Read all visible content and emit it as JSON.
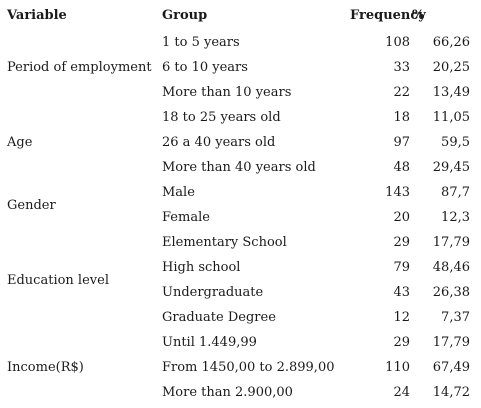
{
  "table": {
    "headers": {
      "variable": "Variable",
      "group": "Group",
      "frequency": "Frequency",
      "percent": "%"
    },
    "sections": [
      {
        "variable": "Period of employment",
        "rows": [
          {
            "group": "1 to 5 years",
            "frequency": "108",
            "percent": "66,26"
          },
          {
            "group": "6 to 10 years",
            "frequency": "33",
            "percent": "20,25"
          },
          {
            "group": "More than 10 years",
            "frequency": "22",
            "percent": "13,49"
          }
        ]
      },
      {
        "variable": "Age",
        "rows": [
          {
            "group": "18 to 25 years old",
            "frequency": "18",
            "percent": "11,05"
          },
          {
            "group": "26 a 40 years old",
            "frequency": "97",
            "percent": "59,5"
          },
          {
            "group": "More than 40 years old",
            "frequency": "48",
            "percent": "29,45"
          }
        ]
      },
      {
        "variable": "Gender",
        "rows": [
          {
            "group": "Male",
            "frequency": "143",
            "percent": "87,7"
          },
          {
            "group": "Female",
            "frequency": "20",
            "percent": "12,3"
          }
        ]
      },
      {
        "variable": "Education level",
        "rows": [
          {
            "group": "Elementary School",
            "frequency": "29",
            "percent": "17,79"
          },
          {
            "group": "High school",
            "frequency": "79",
            "percent": "48,46"
          },
          {
            "group": "Undergraduate",
            "frequency": "43",
            "percent": "26,38"
          },
          {
            "group": "Graduate Degree",
            "frequency": "12",
            "percent": "7,37"
          }
        ]
      },
      {
        "variable": "Income(R$)",
        "rows": [
          {
            "group": "Until 1.449,99",
            "frequency": "29",
            "percent": "17,79"
          },
          {
            "group": "From 1450,00 to 2.899,00",
            "frequency": "110",
            "percent": "67,49"
          },
          {
            "group": "More than 2.900,00",
            "frequency": "24",
            "percent": "14,72"
          }
        ]
      }
    ]
  }
}
